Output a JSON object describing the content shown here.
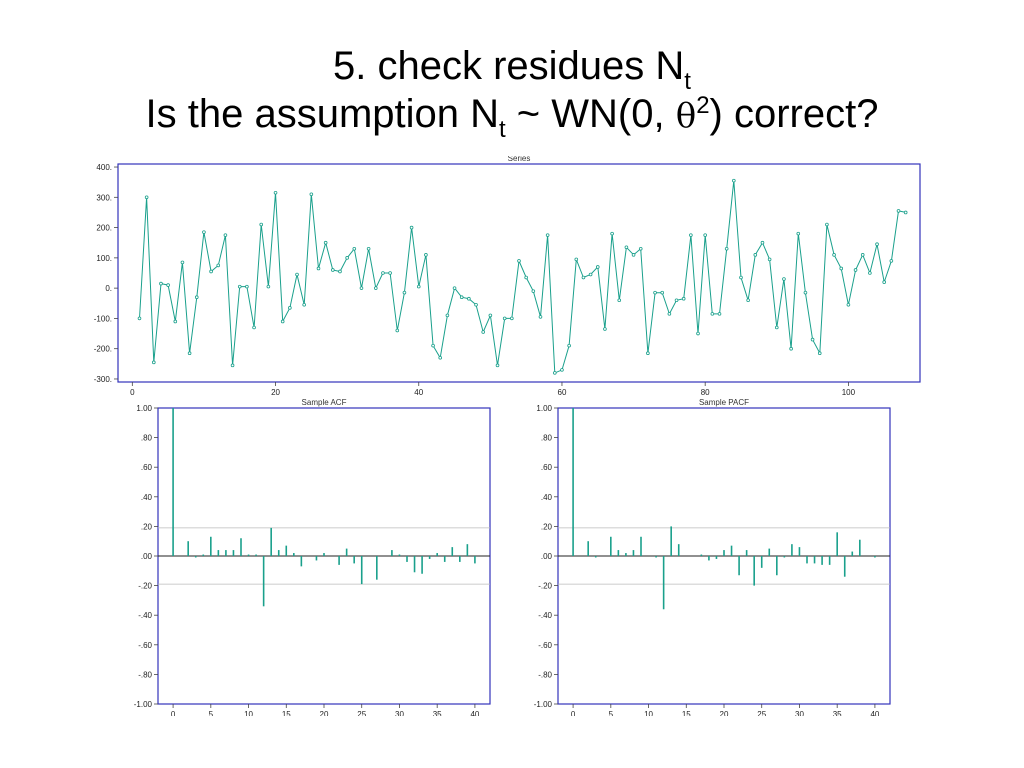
{
  "slide": {
    "title_line1_main": "5. check residues N",
    "title_line1_sub": "t",
    "title_line2_main": "Is the assumption N",
    "title_line2_sub": "t",
    "title_line2_mid": " ~ WN(0, ",
    "title_line2_greek": "θ",
    "title_line2_sup": "2",
    "title_line2_end": ") correct?"
  },
  "colors": {
    "series_line": "#1aa08c",
    "axis_frame": "#3333bb",
    "ref_line": "#bbbbbb"
  },
  "chart_data": [
    {
      "type": "line",
      "title": "Series",
      "xlim": [
        -2,
        110
      ],
      "ylim": [
        -310,
        410
      ],
      "xticks": [
        0,
        20,
        40,
        60,
        80,
        100
      ],
      "xtick_labels": [
        "0",
        "20",
        "40",
        "60",
        "80",
        "100"
      ],
      "yticks": [
        400,
        300,
        200,
        100,
        0,
        -100,
        -200,
        -300
      ],
      "ytick_labels": [
        "400.",
        "300.",
        "200.",
        "100.",
        "0.",
        "-100.",
        "-200.",
        "-300."
      ],
      "series": [
        {
          "x": [
            1,
            2,
            3,
            4,
            5,
            6,
            7,
            8,
            9,
            10,
            11,
            12,
            13,
            14,
            15,
            16,
            17,
            18,
            19,
            20,
            21,
            22,
            23,
            24,
            25,
            26,
            27,
            28,
            29,
            30,
            31,
            32,
            33,
            34,
            35,
            36,
            37,
            38,
            39,
            40,
            41,
            42,
            43,
            44,
            45,
            46,
            47,
            48,
            49,
            50,
            51,
            52,
            53,
            54,
            55,
            56,
            57,
            58,
            59,
            60,
            61,
            62,
            63,
            64,
            65,
            66,
            67,
            68,
            69,
            70,
            71,
            72,
            73,
            74,
            75,
            76,
            77,
            78,
            79,
            80,
            81,
            82,
            83,
            84,
            85,
            86,
            87,
            88,
            89,
            90,
            91,
            92,
            93,
            94,
            95,
            96,
            97,
            98,
            99,
            100,
            101,
            102,
            103,
            104,
            105,
            106,
            107,
            108
          ],
          "values": [
            -100,
            300,
            -245,
            15,
            10,
            -110,
            85,
            -215,
            -30,
            185,
            55,
            75,
            175,
            -255,
            5,
            5,
            -130,
            210,
            5,
            315,
            -110,
            -65,
            45,
            -55,
            310,
            65,
            150,
            60,
            55,
            100,
            130,
            0,
            130,
            0,
            50,
            50,
            -140,
            -15,
            200,
            5,
            110,
            -190,
            -230,
            -90,
            0,
            -30,
            -35,
            -55,
            -145,
            -90,
            -255,
            -100,
            -100,
            90,
            35,
            -10,
            -95,
            175,
            -280,
            -270,
            -190,
            95,
            35,
            45,
            70,
            -135,
            180,
            -40,
            135,
            110,
            130,
            -215,
            -15,
            -15,
            -85,
            -40,
            -35,
            175,
            -150,
            175,
            -85,
            -85,
            130,
            355,
            35,
            -40,
            110,
            150,
            95,
            -130,
            30,
            -200,
            180,
            -15,
            -170,
            -215,
            210,
            110,
            65,
            -55,
            60,
            110,
            50,
            145,
            20,
            90,
            255,
            250
          ]
        }
      ]
    },
    {
      "type": "bar",
      "title": "Sample ACF",
      "xlim": [
        -2,
        42
      ],
      "ylim": [
        -1.0,
        1.0
      ],
      "xticks": [
        0,
        5,
        10,
        15,
        20,
        25,
        30,
        35,
        40
      ],
      "xtick_labels": [
        "0",
        "5",
        "10",
        "15",
        "20",
        "25",
        "30",
        "35",
        "40"
      ],
      "yticks": [
        1.0,
        0.8,
        0.6,
        0.4,
        0.2,
        0.0,
        -0.2,
        -0.4,
        -0.6,
        -0.8,
        -1.0
      ],
      "ytick_labels": [
        "1.00",
        ".80",
        ".60",
        ".40",
        ".20",
        ".00",
        "-.20",
        "-.40",
        "-.60",
        "-.80",
        "-1.00"
      ],
      "confidence_band": 0.19,
      "lags": [
        0,
        1,
        2,
        3,
        4,
        5,
        6,
        7,
        8,
        9,
        10,
        11,
        12,
        13,
        14,
        15,
        16,
        17,
        18,
        19,
        20,
        21,
        22,
        23,
        24,
        25,
        26,
        27,
        28,
        29,
        30,
        31,
        32,
        33,
        34,
        35,
        36,
        37,
        38,
        39,
        40
      ],
      "values": [
        1.0,
        0.0,
        0.1,
        -0.01,
        0.01,
        0.13,
        0.04,
        0.04,
        0.04,
        0.12,
        0.01,
        0.01,
        -0.34,
        0.19,
        0.04,
        0.07,
        0.02,
        -0.07,
        0.0,
        -0.03,
        0.02,
        0.0,
        -0.06,
        0.05,
        -0.05,
        -0.19,
        0.0,
        -0.16,
        0.0,
        0.04,
        0.01,
        -0.04,
        -0.11,
        -0.12,
        -0.02,
        0.02,
        -0.04,
        0.06,
        -0.04,
        0.08,
        -0.05
      ]
    },
    {
      "type": "bar",
      "title": "Sample PACF",
      "xlim": [
        -2,
        42
      ],
      "ylim": [
        -1.0,
        1.0
      ],
      "xticks": [
        0,
        5,
        10,
        15,
        20,
        25,
        30,
        35,
        40
      ],
      "xtick_labels": [
        "0",
        "5",
        "10",
        "15",
        "20",
        "25",
        "30",
        "35",
        "40"
      ],
      "yticks": [
        1.0,
        0.8,
        0.6,
        0.4,
        0.2,
        0.0,
        -0.2,
        -0.4,
        -0.6,
        -0.8,
        -1.0
      ],
      "ytick_labels": [
        "1.00",
        ".80",
        ".60",
        ".40",
        ".20",
        ".00",
        "-.20",
        "-.40",
        "-.60",
        "-.80",
        "-1.00"
      ],
      "confidence_band": 0.19,
      "lags": [
        0,
        1,
        2,
        3,
        4,
        5,
        6,
        7,
        8,
        9,
        10,
        11,
        12,
        13,
        14,
        15,
        16,
        17,
        18,
        19,
        20,
        21,
        22,
        23,
        24,
        25,
        26,
        27,
        28,
        29,
        30,
        31,
        32,
        33,
        34,
        35,
        36,
        37,
        38,
        39,
        40
      ],
      "values": [
        1.0,
        0.0,
        0.1,
        -0.01,
        0.0,
        0.13,
        0.04,
        0.02,
        0.04,
        0.13,
        0.0,
        -0.01,
        -0.36,
        0.2,
        0.08,
        0.0,
        0.0,
        0.01,
        -0.03,
        -0.02,
        0.04,
        0.07,
        -0.13,
        0.04,
        -0.2,
        -0.08,
        0.05,
        -0.13,
        -0.01,
        0.08,
        0.06,
        -0.05,
        -0.05,
        -0.06,
        -0.06,
        0.16,
        -0.14,
        0.03,
        0.11,
        0.0,
        -0.01
      ]
    }
  ]
}
